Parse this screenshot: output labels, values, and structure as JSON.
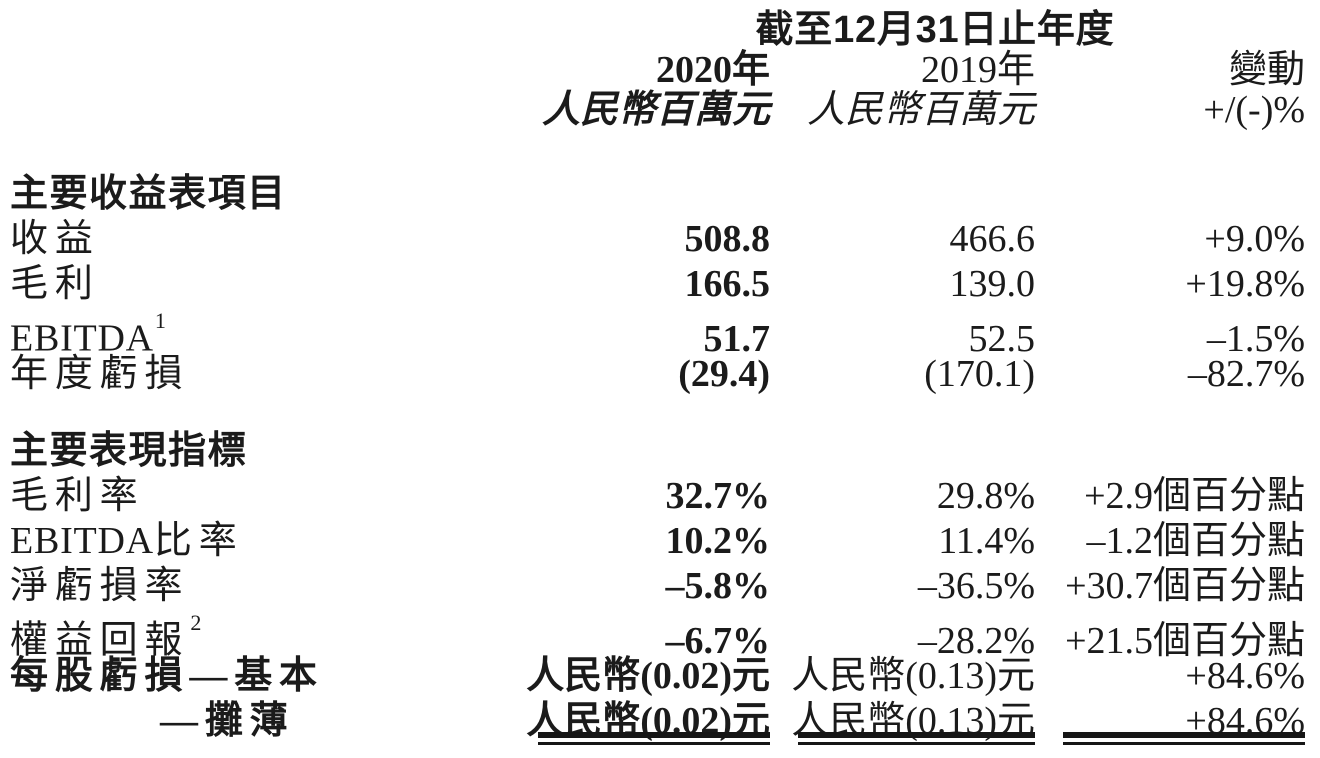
{
  "table": {
    "title": "截至12月31日止年度",
    "columns": {
      "y2020": "2020年",
      "y2019": "2019年",
      "change": "變動",
      "unit2020": "人民幣百萬元",
      "unit2019": "人民幣百萬元",
      "unit_change": "+/(-)%"
    },
    "sections": [
      {
        "header": "主要收益表項目",
        "rows": [
          {
            "label_latin": "",
            "label_cjk": "收益",
            "sup": "",
            "v2020": "508.8",
            "v2019": "466.6",
            "change": "+9.0%"
          },
          {
            "label_latin": "",
            "label_cjk": "毛利",
            "sup": "",
            "v2020": "166.5",
            "v2019": "139.0",
            "change": "+19.8%"
          },
          {
            "label_latin": "EBITDA",
            "label_cjk": "",
            "sup": "1",
            "v2020": "51.7",
            "v2019": "52.5",
            "change": "–1.5%"
          },
          {
            "label_latin": "",
            "label_cjk": "年度虧損",
            "sup": "",
            "v2020": "(29.4)",
            "v2019": "(170.1)",
            "change": "–82.7%"
          }
        ]
      },
      {
        "header": "主要表現指標",
        "rows": [
          {
            "label_latin": "",
            "label_cjk": "毛利率",
            "sup": "",
            "v2020": "32.7%",
            "v2019": "29.8%",
            "change": "+2.9個百分點"
          },
          {
            "label_latin": "EBITDA",
            "label_cjk": "比率",
            "sup": "",
            "v2020": "10.2%",
            "v2019": "11.4%",
            "change": "–1.2個百分點"
          },
          {
            "label_latin": "",
            "label_cjk": "淨虧損率",
            "sup": "",
            "v2020": "–5.8%",
            "v2019": "–36.5%",
            "change": "+30.7個百分點"
          },
          {
            "label_latin": "",
            "label_cjk": "權益回報",
            "sup": "2",
            "v2020": "–6.7%",
            "v2019": "–28.2%",
            "change": "+21.5個百分點"
          },
          {
            "label_latin": "",
            "label_cjk": "每股虧損—基本",
            "sup": "",
            "v2020": "人民幣(0.02)元",
            "v2019": "人民幣(0.13)元",
            "change": "+84.6%"
          },
          {
            "label_latin": "",
            "label_cjk": "—攤薄",
            "sup": "",
            "v2020": "人民幣(0.02)元",
            "v2019": "人民幣(0.13)元",
            "change": "+84.6%"
          }
        ]
      }
    ]
  }
}
